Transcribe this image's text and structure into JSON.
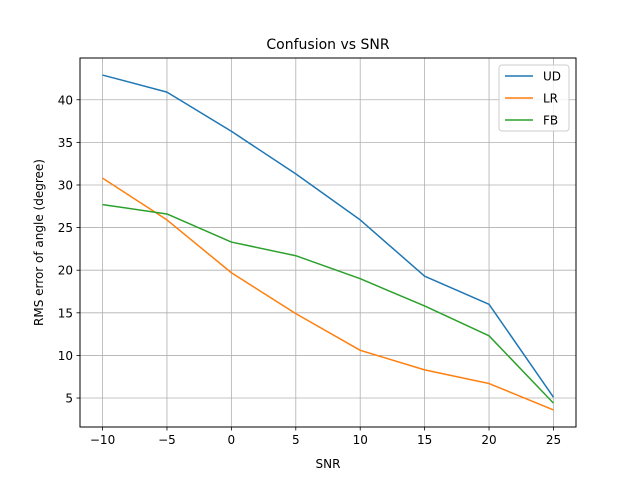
{
  "chart_data": {
    "type": "line",
    "title": "Confusion vs SNR",
    "xlabel": "SNR",
    "ylabel": "RMS error of angle (degree)",
    "x": [
      -10,
      -5,
      0,
      5,
      10,
      15,
      20,
      25
    ],
    "x_ticks": [
      -10,
      -5,
      0,
      5,
      10,
      15,
      20,
      25
    ],
    "x_tick_labels": [
      "−10",
      "−5",
      "0",
      "5",
      "10",
      "15",
      "20",
      "25"
    ],
    "y_ticks": [
      5,
      10,
      15,
      20,
      25,
      30,
      35,
      40
    ],
    "y_tick_labels": [
      "5",
      "10",
      "15",
      "20",
      "25",
      "30",
      "35",
      "40"
    ],
    "xlim": [
      -11.75,
      26.75
    ],
    "ylim": [
      1.6,
      44.9
    ],
    "grid": true,
    "legend_position": "top-right",
    "series": [
      {
        "name": "UD",
        "color": "#1f77b4",
        "values": [
          42.9,
          40.9,
          36.3,
          31.3,
          25.9,
          19.3,
          16.0,
          5.1
        ]
      },
      {
        "name": "LR",
        "color": "#ff7f0e",
        "values": [
          30.8,
          25.9,
          19.7,
          14.9,
          10.6,
          8.3,
          6.7,
          3.6
        ]
      },
      {
        "name": "FB",
        "color": "#2ca02c",
        "values": [
          27.7,
          26.6,
          23.3,
          21.7,
          19.0,
          15.8,
          12.3,
          4.4
        ]
      }
    ]
  }
}
